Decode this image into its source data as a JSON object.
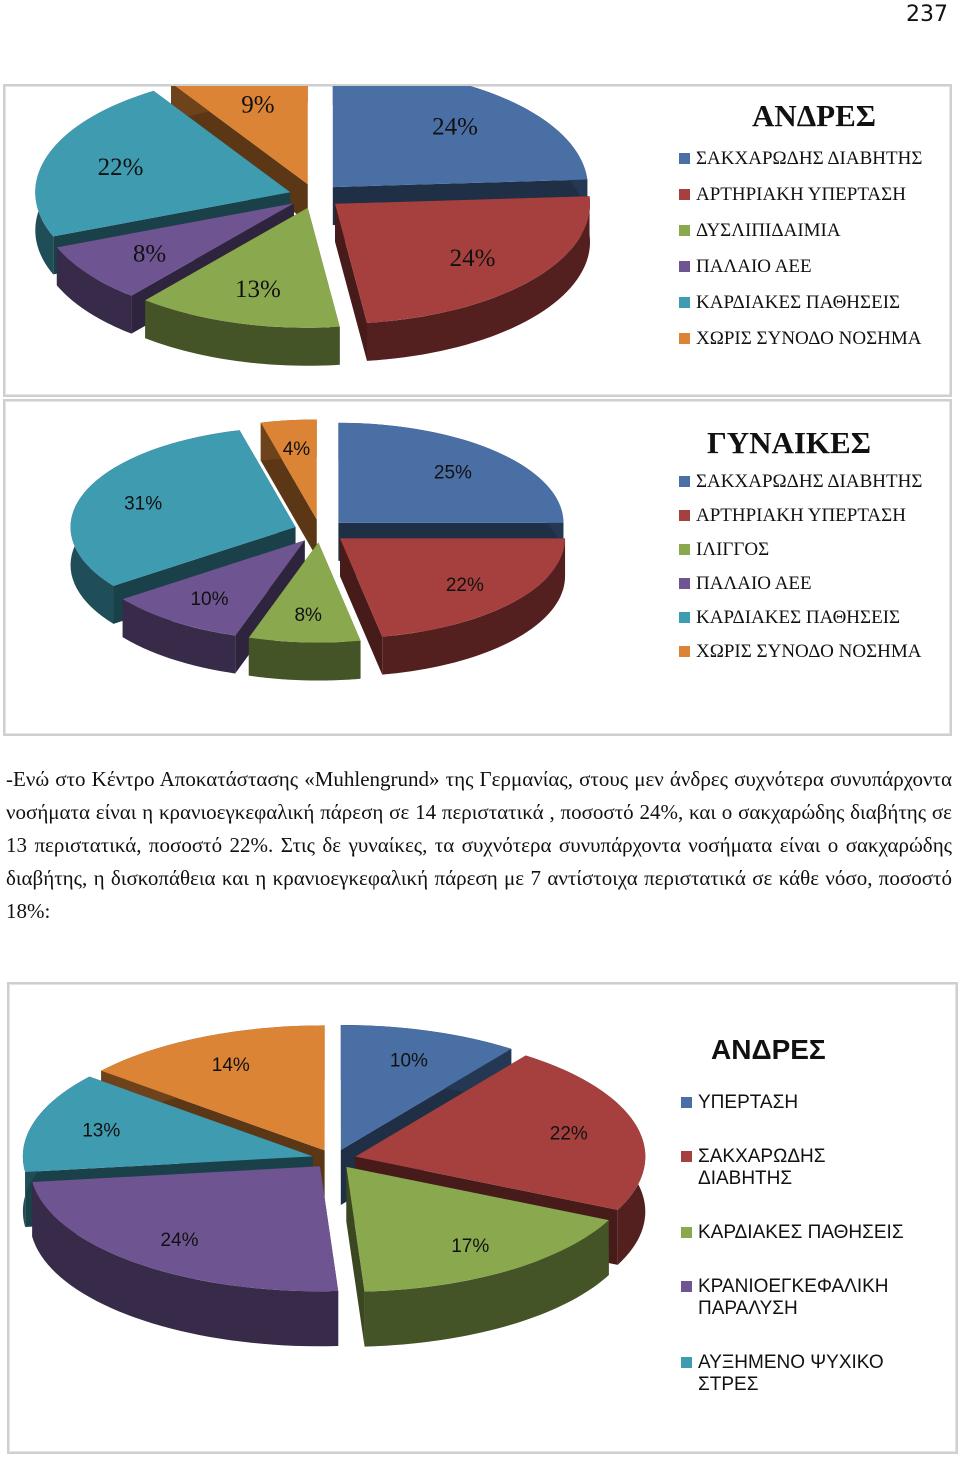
{
  "page_number": "237",
  "paragraph": "-Ενώ στο Κέντρο Αποκατάστασης «Muhlengrund» της Γερμανίας, στους μεν άνδρες συχνότερα συνυπάρχοντα νοσήματα είναι η κρανιοεγκεφαλική πάρεση σε 14 περιστατικά , ποσοστό 24%, και ο σακχαρώδης διαβήτης σε 13 περιστατικά, ποσοστό 22%. Στις δε γυναίκες, τα συχνότερα συνυπάρχοντα νοσήματα είναι ο σακχαρώδης διαβήτης, η δισκοπάθεια και η κρανιοεγκεφαλική πάρεση με 7 αντίστοιχα περιστατικά σε κάθε νόσο, ποσοστό 18%:",
  "chart_data": [
    {
      "type": "pie",
      "title": "ΑΝΔΡΕΣ",
      "categories": [
        "ΣΑΚΧΑΡΩΔΗΣ ΔΙΑΒΗΤΗΣ",
        "ΑΡΤΗΡΙΑΚΗ ΥΠΕΡΤΑΣΗ",
        "ΔΥΣΛΙΠΙΔΑΙΜΙΑ",
        "ΠΑΛΑΙΟ ΑΕΕ",
        "ΚΑΡΔΙΑΚΕΣ ΠΑΘΗΣΕΙΣ",
        "ΧΩΡΙΣ ΣΥΝΟΔΟ ΝΟΣΗΜΑ"
      ],
      "values": [
        24,
        24,
        13,
        8,
        22,
        9
      ],
      "labels": [
        "24%",
        "24%",
        "13%",
        "8%",
        "22%",
        "9%"
      ],
      "colors": [
        "#4a6fa5",
        "#a6403e",
        "#8aa84e",
        "#6e5591",
        "#3f9bb0",
        "#dc8435"
      ],
      "legend_position": "right"
    },
    {
      "type": "pie",
      "title": "ΓΥΝΑΙΚΕΣ",
      "categories": [
        "ΣΑΚΧΑΡΩΔΗΣ ΔΙΑΒΗΤΗΣ",
        "ΑΡΤΗΡΙΑΚΗ ΥΠΕΡΤΑΣΗ",
        "ΙΛΙΓΓΟΣ",
        "ΠΑΛΑΙΟ ΑΕΕ",
        "ΚΑΡΔΙΑΚΕΣ ΠΑΘΗΣΕΙΣ",
        "ΧΩΡΙΣ ΣΥΝΟΔΟ ΝΟΣΗΜΑ"
      ],
      "values": [
        25,
        22,
        8,
        10,
        31,
        4
      ],
      "labels": [
        "25%",
        "22%",
        "8%",
        "10%",
        "31%",
        "4%"
      ],
      "colors": [
        "#4a6fa5",
        "#a6403e",
        "#8aa84e",
        "#6e5591",
        "#3f9bb0",
        "#dc8435"
      ],
      "legend_position": "right"
    },
    {
      "type": "pie",
      "title": "ΑΝΔΡΕΣ",
      "categories": [
        "ΥΠΕΡΤΑΣΗ",
        "ΣΑΚΧΑΡΩΔΗΣ ΔΙΑΒΗΤΗΣ",
        "ΚΑΡΔΙΑΚΕΣ ΠΑΘΗΣΕΙΣ",
        "ΚΡΑΝΙΟΕΓΚΕΦΑΛΙΚΗ ΠΑΡΑΛΥΣΗ",
        "ΑΥΞΗΜΕΝΟ ΨΥΧΙΚΟ ΣΤΡΕΣ",
        ""
      ],
      "values": [
        10,
        22,
        17,
        24,
        13,
        14
      ],
      "labels": [
        "10%",
        "22%",
        "17%",
        "24%",
        "13%",
        "14%"
      ],
      "colors": [
        "#4a6fa5",
        "#a6403e",
        "#8aa84e",
        "#6e5591",
        "#3f9bb0",
        "#dc8435"
      ],
      "legend_position": "right"
    }
  ]
}
